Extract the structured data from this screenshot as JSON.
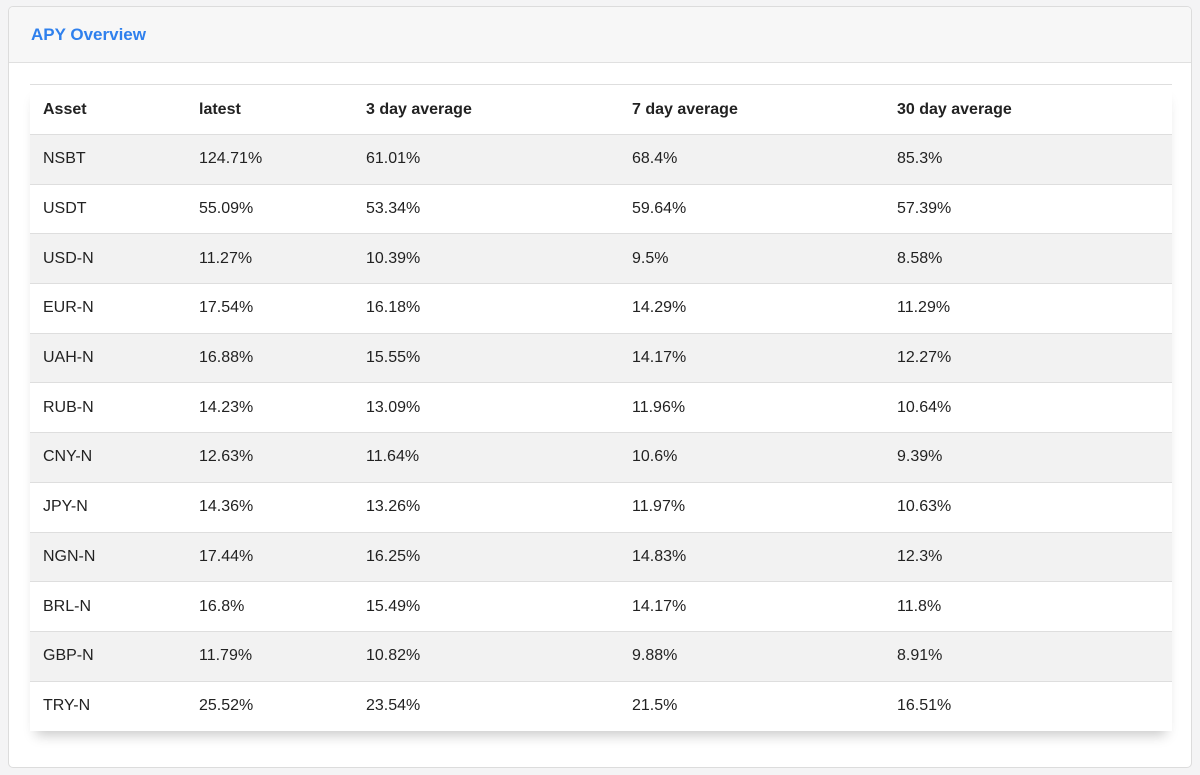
{
  "card": {
    "title": "APY Overview"
  },
  "table": {
    "headers": [
      "Asset",
      "latest",
      "3 day average",
      "7 day average",
      "30 day average"
    ],
    "rows": [
      [
        "NSBT",
        "124.71%",
        "61.01%",
        "68.4%",
        "85.3%"
      ],
      [
        "USDT",
        "55.09%",
        "53.34%",
        "59.64%",
        "57.39%"
      ],
      [
        "USD-N",
        "11.27%",
        "10.39%",
        "9.5%",
        "8.58%"
      ],
      [
        "EUR-N",
        "17.54%",
        "16.18%",
        "14.29%",
        "11.29%"
      ],
      [
        "UAH-N",
        "16.88%",
        "15.55%",
        "14.17%",
        "12.27%"
      ],
      [
        "RUB-N",
        "14.23%",
        "13.09%",
        "11.96%",
        "10.64%"
      ],
      [
        "CNY-N",
        "12.63%",
        "11.64%",
        "10.6%",
        "9.39%"
      ],
      [
        "JPY-N",
        "14.36%",
        "13.26%",
        "11.97%",
        "10.63%"
      ],
      [
        "NGN-N",
        "17.44%",
        "16.25%",
        "14.83%",
        "12.3%"
      ],
      [
        "BRL-N",
        "16.8%",
        "15.49%",
        "14.17%",
        "11.8%"
      ],
      [
        "GBP-N",
        "11.79%",
        "10.82%",
        "9.88%",
        "8.91%"
      ],
      [
        "TRY-N",
        "25.52%",
        "23.54%",
        "21.5%",
        "16.51%"
      ]
    ]
  },
  "colors": {
    "title": "#2f80ed",
    "stripe": "#f2f2f2",
    "header_bg": "#f7f7f7"
  }
}
